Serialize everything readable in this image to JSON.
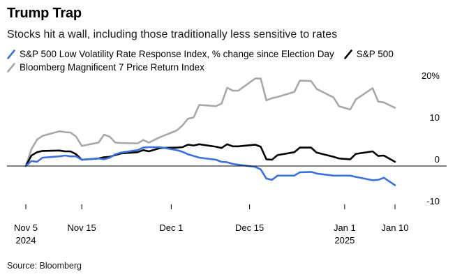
{
  "title": "Trump Trap",
  "subtitle": "Stocks hit a wall, including those traditionally less sensitive to rates",
  "source": "Source: Bloomberg",
  "chart_data": {
    "type": "line",
    "ylabel": "",
    "y_unit_label": "%",
    "ylim": [
      -13,
      23
    ],
    "y_ticks": [
      20,
      10,
      0,
      -10
    ],
    "y_tick_labels": [
      "20%",
      "10",
      "0",
      "-10"
    ],
    "x_start": "2024-11-05",
    "x_end": "2025-01-10",
    "x_ticks": [
      {
        "date": "2024-11-05",
        "label": "Nov 5",
        "sublabel": "2024"
      },
      {
        "date": "2024-11-15",
        "label": "Nov 15",
        "sublabel": ""
      },
      {
        "date": "2024-12-01",
        "label": "Dec 1",
        "sublabel": ""
      },
      {
        "date": "2024-12-15",
        "label": "Dec 15",
        "sublabel": ""
      },
      {
        "date": "2025-01-01",
        "label": "Jan 1",
        "sublabel": "2025"
      },
      {
        "date": "2025-01-10",
        "label": "Jan 10",
        "sublabel": ""
      }
    ],
    "grid": false,
    "legend_position": "top-left",
    "series": [
      {
        "name": "S&P 500 Low Volatility Rate Response Index, % change since Election Day",
        "color": "#3b6fe0",
        "points": [
          [
            "2024-11-05",
            0
          ],
          [
            "2024-11-06",
            1.2
          ],
          [
            "2024-11-07",
            1.0
          ],
          [
            "2024-11-08",
            2.0
          ],
          [
            "2024-11-11",
            2.3
          ],
          [
            "2024-11-12",
            2.5
          ],
          [
            "2024-11-13",
            2.3
          ],
          [
            "2024-11-14",
            2.3
          ],
          [
            "2024-11-15",
            1.5
          ],
          [
            "2024-11-18",
            1.8
          ],
          [
            "2024-11-19",
            1.6
          ],
          [
            "2024-11-20",
            2.0
          ],
          [
            "2024-11-21",
            2.8
          ],
          [
            "2024-11-22",
            3.2
          ],
          [
            "2024-11-25",
            3.8
          ],
          [
            "2024-11-26",
            4.4
          ],
          [
            "2024-11-27",
            4.5
          ],
          [
            "2024-11-29",
            4.5
          ],
          [
            "2024-12-02",
            3.8
          ],
          [
            "2024-12-03",
            3.4
          ],
          [
            "2024-12-04",
            2.8
          ],
          [
            "2024-12-05",
            2.4
          ],
          [
            "2024-12-06",
            2.0
          ],
          [
            "2024-12-09",
            1.5
          ],
          [
            "2024-12-10",
            1.0
          ],
          [
            "2024-12-11",
            0.9
          ],
          [
            "2024-12-12",
            0.5
          ],
          [
            "2024-12-13",
            0.3
          ],
          [
            "2024-12-16",
            -0.2
          ],
          [
            "2024-12-17",
            -0.8
          ],
          [
            "2024-12-18",
            -3.0
          ],
          [
            "2024-12-19",
            -3.3
          ],
          [
            "2024-12-20",
            -2.3
          ],
          [
            "2024-12-23",
            -2.3
          ],
          [
            "2024-12-24",
            -1.5
          ],
          [
            "2024-12-26",
            -1.4
          ],
          [
            "2024-12-27",
            -1.8
          ],
          [
            "2024-12-30",
            -2.3
          ],
          [
            "2024-12-31",
            -2.3
          ],
          [
            "2025-01-02",
            -2.3
          ],
          [
            "2025-01-03",
            -2.6
          ],
          [
            "2025-01-06",
            -3.4
          ],
          [
            "2025-01-07",
            -3.3
          ],
          [
            "2025-01-08",
            -2.8
          ],
          [
            "2025-01-10",
            -4.6
          ]
        ]
      },
      {
        "name": "S&P 500",
        "color": "#000000",
        "points": [
          [
            "2024-11-05",
            0
          ],
          [
            "2024-11-06",
            2.5
          ],
          [
            "2024-11-07",
            3.3
          ],
          [
            "2024-11-08",
            3.6
          ],
          [
            "2024-11-11",
            3.7
          ],
          [
            "2024-11-12",
            3.5
          ],
          [
            "2024-11-13",
            3.5
          ],
          [
            "2024-11-14",
            2.8
          ],
          [
            "2024-11-15",
            1.5
          ],
          [
            "2024-11-18",
            1.8
          ],
          [
            "2024-11-19",
            2.1
          ],
          [
            "2024-11-20",
            2.2
          ],
          [
            "2024-11-21",
            2.6
          ],
          [
            "2024-11-22",
            3.0
          ],
          [
            "2024-11-25",
            3.3
          ],
          [
            "2024-11-26",
            3.8
          ],
          [
            "2024-11-27",
            3.5
          ],
          [
            "2024-11-29",
            4.3
          ],
          [
            "2024-12-02",
            4.4
          ],
          [
            "2024-12-03",
            4.5
          ],
          [
            "2024-12-04",
            5.1
          ],
          [
            "2024-12-05",
            4.9
          ],
          [
            "2024-12-06",
            5.2
          ],
          [
            "2024-12-09",
            4.6
          ],
          [
            "2024-12-10",
            4.3
          ],
          [
            "2024-12-11",
            5.2
          ],
          [
            "2024-12-12",
            4.7
          ],
          [
            "2024-12-13",
            4.7
          ],
          [
            "2024-12-16",
            5.1
          ],
          [
            "2024-12-17",
            4.6
          ],
          [
            "2024-12-18",
            1.6
          ],
          [
            "2024-12-19",
            1.5
          ],
          [
            "2024-12-20",
            2.6
          ],
          [
            "2024-12-23",
            3.3
          ],
          [
            "2024-12-24",
            4.4
          ],
          [
            "2024-12-26",
            4.4
          ],
          [
            "2024-12-27",
            3.2
          ],
          [
            "2024-12-30",
            2.2
          ],
          [
            "2024-12-31",
            1.8
          ],
          [
            "2025-01-02",
            1.6
          ],
          [
            "2025-01-03",
            2.9
          ],
          [
            "2025-01-06",
            3.5
          ],
          [
            "2025-01-07",
            2.4
          ],
          [
            "2025-01-08",
            2.5
          ],
          [
            "2025-01-10",
            1.0
          ]
        ]
      },
      {
        "name": "Bloomberg Magnificent 7 Price Return Index",
        "color": "#a8a8a8",
        "points": [
          [
            "2024-11-05",
            0
          ],
          [
            "2024-11-06",
            4.0
          ],
          [
            "2024-11-07",
            6.3
          ],
          [
            "2024-11-08",
            7.2
          ],
          [
            "2024-11-11",
            8.3
          ],
          [
            "2024-11-12",
            8.1
          ],
          [
            "2024-11-13",
            8.0
          ],
          [
            "2024-11-14",
            7.0
          ],
          [
            "2024-11-15",
            4.8
          ],
          [
            "2024-11-18",
            5.6
          ],
          [
            "2024-11-19",
            7.5
          ],
          [
            "2024-11-20",
            7.0
          ],
          [
            "2024-11-21",
            5.6
          ],
          [
            "2024-11-22",
            5.5
          ],
          [
            "2024-11-25",
            5.4
          ],
          [
            "2024-11-26",
            6.2
          ],
          [
            "2024-11-27",
            5.6
          ],
          [
            "2024-11-29",
            6.9
          ],
          [
            "2024-12-02",
            8.5
          ],
          [
            "2024-12-03",
            9.7
          ],
          [
            "2024-12-04",
            11.3
          ],
          [
            "2024-12-05",
            11.6
          ],
          [
            "2024-12-06",
            14.6
          ],
          [
            "2024-12-09",
            14.3
          ],
          [
            "2024-12-10",
            14.9
          ],
          [
            "2024-12-11",
            18.7
          ],
          [
            "2024-12-12",
            18.0
          ],
          [
            "2024-12-13",
            18.0
          ],
          [
            "2024-12-16",
            20.9
          ],
          [
            "2024-12-17",
            20.9
          ],
          [
            "2024-12-18",
            15.7
          ],
          [
            "2024-12-19",
            16.2
          ],
          [
            "2024-12-20",
            16.5
          ],
          [
            "2024-12-23",
            17.7
          ],
          [
            "2024-12-24",
            20.4
          ],
          [
            "2024-12-26",
            20.3
          ],
          [
            "2024-12-27",
            18.4
          ],
          [
            "2024-12-30",
            16.4
          ],
          [
            "2024-12-31",
            14.3
          ],
          [
            "2025-01-02",
            13.5
          ],
          [
            "2025-01-03",
            15.9
          ],
          [
            "2025-01-06",
            18.6
          ],
          [
            "2025-01-07",
            15.4
          ],
          [
            "2025-01-08",
            15.2
          ],
          [
            "2025-01-10",
            13.9
          ]
        ]
      }
    ]
  }
}
